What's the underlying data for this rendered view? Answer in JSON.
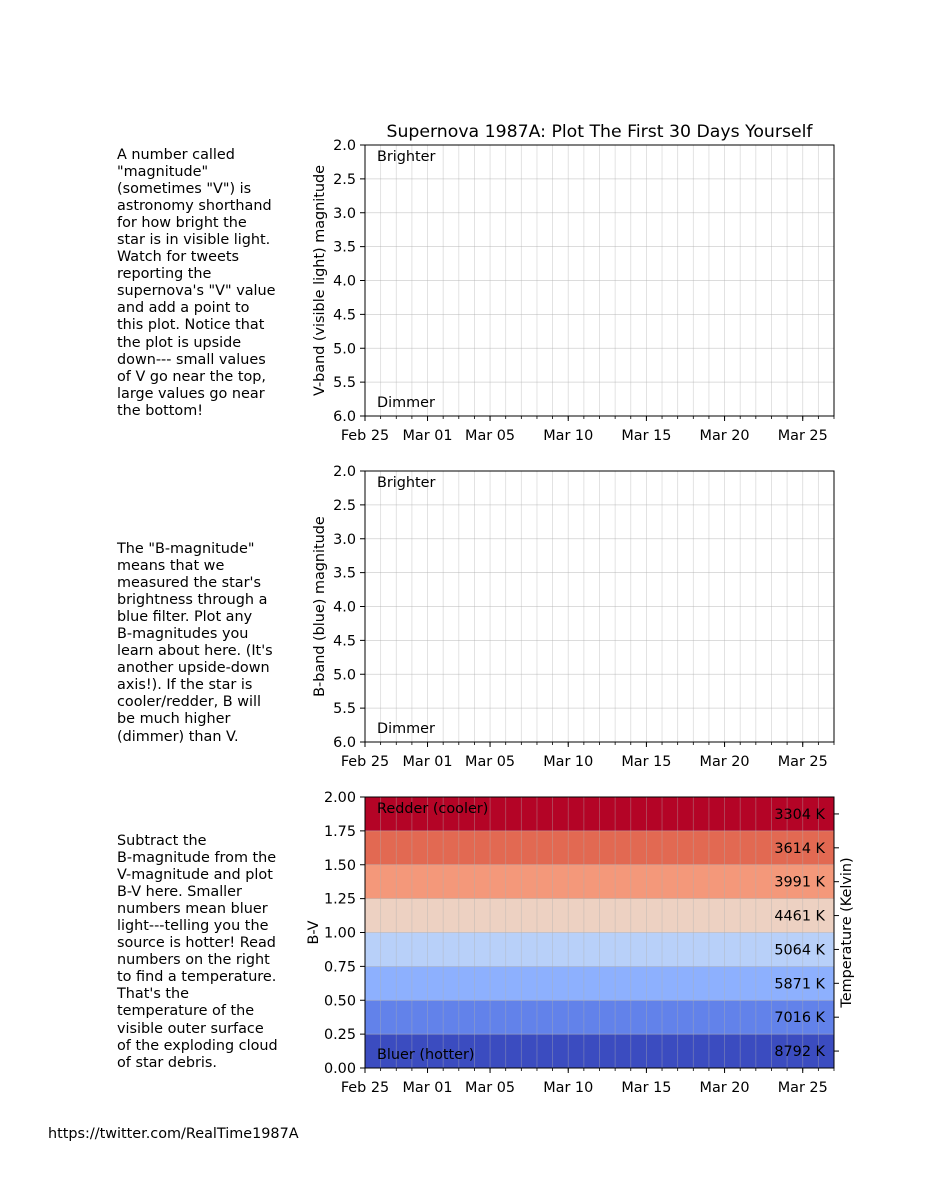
{
  "title": "Supernova 1987A: Plot The First 30 Days Yourself",
  "footer_url": "https://twitter.com/RealTime1987A",
  "explanations": [
    "A number called\n\"magnitude\"\n(sometimes \"V\") is\nastronomy shorthand\nfor how bright the\nstar is in visible light.\nWatch for tweets\nreporting the\nsupernova's \"V\" value\nand add a point to\nthis plot.  Notice that\nthe plot is upside\ndown--- small values\nof V go near the top,\nlarge values go near\nthe bottom!",
    "The \"B-magnitude\"\nmeans that we\nmeasured the star's\nbrightness through a\nblue filter. Plot any\nB-magnitudes you\nlearn about here.  (It's\nanother upside-down\naxis!). If the star is\ncooler/redder, B will\nbe much higher\n(dimmer) than V.",
    "Subtract the\nB-magnitude from the\nV-magnitude and plot\nB-V here. Smaller\nnumbers mean bluer\nlight---telling you the\nsource is hotter! Read\nnumbers on the right\nto find a temperature.\n That's the\ntemperature of the\nvisible outer surface\nof the exploding cloud\nof star debris."
  ],
  "chart_data": [
    {
      "type": "line",
      "title": "Supernova 1987A: Plot The First 30 Days Yourself",
      "xlabel": "",
      "ylabel": "V-band (visible light) magnitude",
      "xlim": [
        "1987-02-25",
        "1987-03-27"
      ],
      "ylim": [
        6.0,
        2.0
      ],
      "y_inverted": true,
      "xticks": [
        "Feb 25",
        "Mar 01",
        "Mar 05",
        "Mar 10",
        "Mar 15",
        "Mar 20",
        "Mar 25"
      ],
      "yticks": [
        "2.0",
        "2.5",
        "3.0",
        "3.5",
        "4.0",
        "4.5",
        "5.0",
        "5.5",
        "6.0"
      ],
      "annotations": [
        "Brighter",
        "Dimmer"
      ],
      "grid": true,
      "series": []
    },
    {
      "type": "line",
      "title": "",
      "xlabel": "",
      "ylabel": "B-band (blue) magnitude",
      "xlim": [
        "1987-02-25",
        "1987-03-27"
      ],
      "ylim": [
        6.0,
        2.0
      ],
      "y_inverted": true,
      "xticks": [
        "Feb 25",
        "Mar 01",
        "Mar 05",
        "Mar 10",
        "Mar 15",
        "Mar 20",
        "Mar 25"
      ],
      "yticks": [
        "2.0",
        "2.5",
        "3.0",
        "3.5",
        "4.0",
        "4.5",
        "5.0",
        "5.5",
        "6.0"
      ],
      "annotations": [
        "Brighter",
        "Dimmer"
      ],
      "grid": true,
      "series": []
    },
    {
      "type": "heatmap",
      "title": "",
      "xlabel": "",
      "ylabel": "B-V",
      "y2label": "Temperature (Kelvin)",
      "xlim": [
        "1987-02-25",
        "1987-03-27"
      ],
      "ylim": [
        0.0,
        2.0
      ],
      "xticks": [
        "Feb 25",
        "Mar 01",
        "Mar 05",
        "Mar 10",
        "Mar 15",
        "Mar 20",
        "Mar 25"
      ],
      "yticks": [
        "0.00",
        "0.25",
        "0.50",
        "0.75",
        "1.00",
        "1.25",
        "1.50",
        "1.75",
        "2.00"
      ],
      "annotations": [
        "Redder (cooler)",
        "Bluer (hotter)"
      ],
      "grid": true,
      "bands": [
        {
          "from": 0.0,
          "to": 0.25,
          "color": "#3b4cc0",
          "temperature": "8792 K"
        },
        {
          "from": 0.25,
          "to": 0.5,
          "color": "#6282ea",
          "temperature": "7016 K"
        },
        {
          "from": 0.5,
          "to": 0.75,
          "color": "#8db0fe",
          "temperature": "5871 K"
        },
        {
          "from": 0.75,
          "to": 1.0,
          "color": "#b8d0f9",
          "temperature": "5064 K"
        },
        {
          "from": 1.0,
          "to": 1.25,
          "color": "#edd1c2",
          "temperature": "4461 K"
        },
        {
          "from": 1.25,
          "to": 1.5,
          "color": "#f4987a",
          "temperature": "3991 K"
        },
        {
          "from": 1.5,
          "to": 1.75,
          "color": "#e26952",
          "temperature": "3614 K"
        },
        {
          "from": 1.75,
          "to": 2.0,
          "color": "#b40426",
          "temperature": "3304 K"
        }
      ],
      "series": []
    }
  ]
}
